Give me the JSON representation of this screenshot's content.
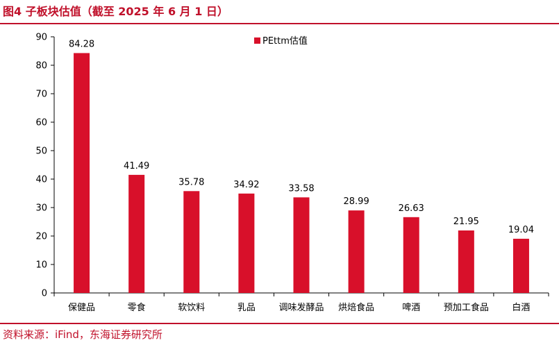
{
  "title": "图4  子板块估值（截至 2025 年 6 月 1 日）",
  "source": "资料来源：iFind，东海证券研究所",
  "chart_data": {
    "type": "bar",
    "categories": [
      "保健品",
      "零食",
      "软饮料",
      "乳品",
      "调味发酵品",
      "烘焙食品",
      "啤酒",
      "预加工食品",
      "白酒"
    ],
    "series": [
      {
        "name": "PEttm估值",
        "values": [
          84.28,
          41.49,
          35.78,
          34.92,
          33.58,
          28.99,
          26.63,
          21.95,
          19.04
        ]
      }
    ],
    "value_labels": [
      "84.28",
      "41.49",
      "35.78",
      "34.92",
      "33.58",
      "28.99",
      "26.63",
      "21.95",
      "19.04"
    ],
    "y_ticks": [
      "0",
      "10",
      "20",
      "30",
      "40",
      "50",
      "60",
      "70",
      "80",
      "90"
    ],
    "ylim": [
      0,
      90
    ],
    "grid": false,
    "legend_position": "top-center",
    "bar_color": "#d8102a"
  }
}
